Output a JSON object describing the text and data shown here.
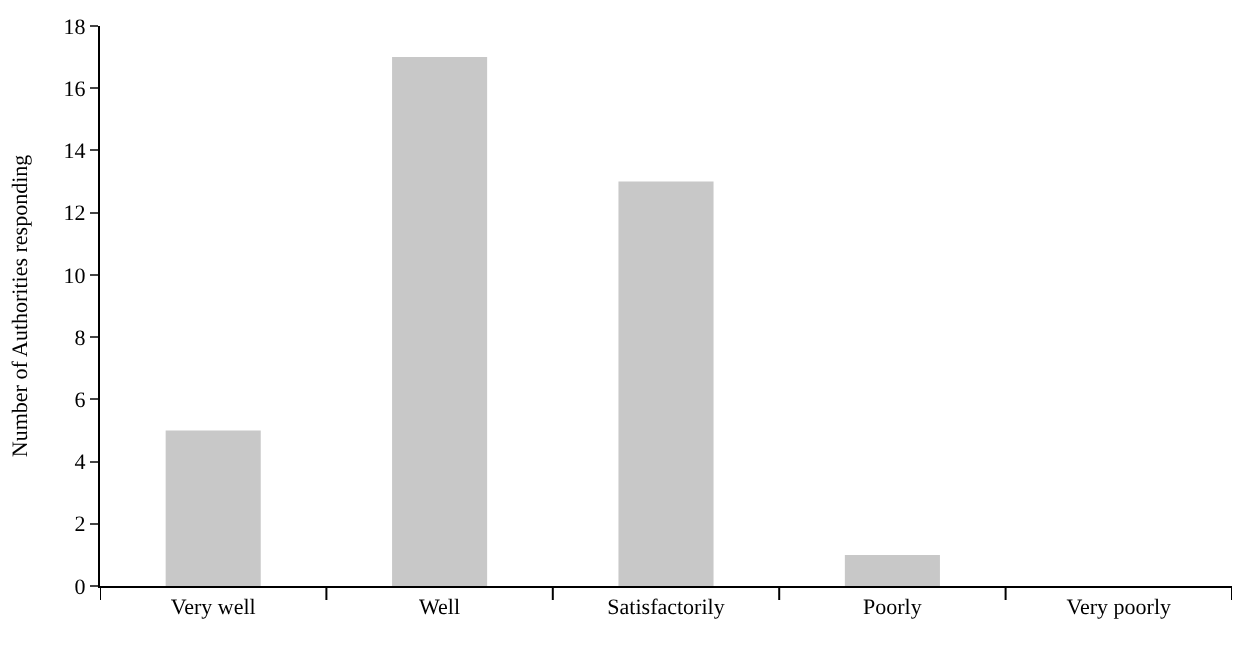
{
  "chart_data": {
    "type": "bar",
    "ylabel": "Number of Authorities responding",
    "categories": [
      "Very well",
      "Well",
      "Satisfactorily",
      "Poorly",
      "Very poorly"
    ],
    "values": [
      5,
      17,
      13,
      1,
      0
    ],
    "color": "#c8c8c8",
    "ylim": [
      0,
      18
    ],
    "yticks": [
      0,
      2,
      4,
      6,
      8,
      10,
      12,
      14,
      16,
      18
    ]
  }
}
